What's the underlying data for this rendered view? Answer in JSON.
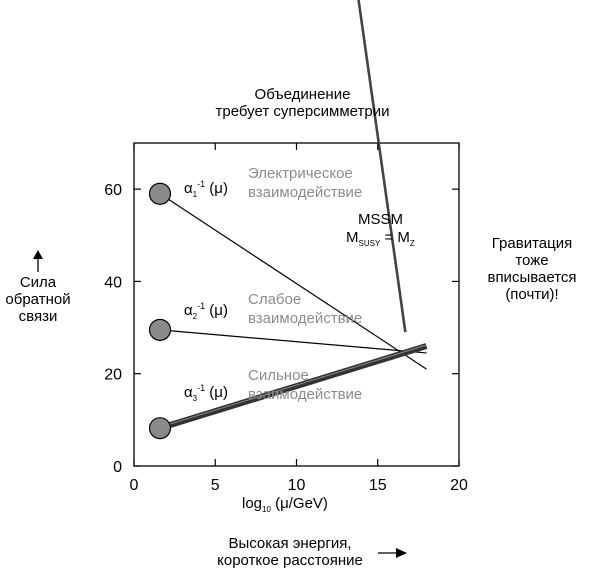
{
  "chart_data": {
    "type": "line",
    "xlabel": {
      "text": "log",
      "sub": "10",
      "rest": " (μ/GeV)"
    },
    "xlim": [
      0,
      20
    ],
    "ylim": [
      0,
      70
    ],
    "xticks": [
      0,
      5,
      10,
      15,
      20
    ],
    "yticks": [
      0,
      20,
      40,
      60
    ],
    "series": [
      {
        "name": "α1-1 (μ)",
        "kind": "thin",
        "points": [
          [
            1.6,
            59
          ],
          [
            18,
            21
          ]
        ],
        "start_marker": true
      },
      {
        "name": "α2-1 (μ)",
        "kind": "thin",
        "points": [
          [
            1.6,
            29.5
          ],
          [
            18,
            24.5
          ]
        ],
        "start_marker": true
      },
      {
        "name": "α3-1 (μ)",
        "kind": "thick",
        "points": [
          [
            1.6,
            8.2
          ],
          [
            18,
            26
          ]
        ],
        "start_marker": true
      },
      {
        "name": "MSSM",
        "kind": "steep",
        "points": [
          [
            13.7,
            104
          ],
          [
            16.7,
            29
          ]
        ]
      }
    ],
    "colors": {
      "marker_fill": "#8a8a8a",
      "line": "#000000",
      "thick_line": "#333333",
      "steep_line": "#444444",
      "gray_text": "#8c8c8c"
    }
  },
  "labels": {
    "alpha1": {
      "base": "α",
      "sub": "1",
      "sup": "-1",
      "rest": " (μ)"
    },
    "alpha2": {
      "base": "α",
      "sub": "2",
      "sup": "-1",
      "rest": " (μ)"
    },
    "alpha3": {
      "base": "α",
      "sub": "3",
      "sup": "-1",
      "rest": " (μ)"
    },
    "em_line1": "Электрическое",
    "em_line2": "взаимодействие",
    "weak_line1": "Слабое",
    "weak_line2": "взаимодействие",
    "strong_line1": "Сильное",
    "strong_line2": "взаимодействие",
    "mssm": "MSSM",
    "mssm_eq": {
      "m1": "M",
      "s1": "SUSY",
      "eq": " = M",
      "s2": "Z"
    }
  },
  "annotations": {
    "unification_line1": "Объединение",
    "unification_line2": "требует суперсимметрии",
    "gravity_line1": "Гравитация",
    "gravity_line2": "тоже",
    "gravity_line3": "вписывается",
    "gravity_line4": "(почти)!",
    "ylabel_line1": "Сила",
    "ylabel_line2": "обратной",
    "ylabel_line3": "связи",
    "xcaption_line1": "Высокая энергия,",
    "xcaption_line2": "короткое расстояние"
  }
}
